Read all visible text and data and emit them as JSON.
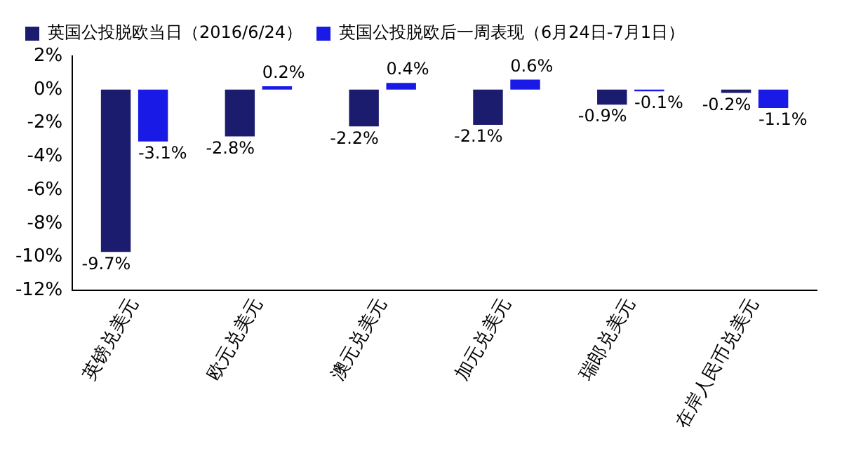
{
  "chart_data": {
    "type": "bar",
    "categories": [
      "英镑兑美元",
      "欧元兑美元",
      "澳元兑美元",
      "加元兑美元",
      "瑞郎兑美元",
      "在岸人民币兑美元"
    ],
    "series": [
      {
        "name": "英国公投脱欧当日（2016/6/24）",
        "color": "#1c1c6e",
        "values": [
          -9.7,
          -2.8,
          -2.2,
          -2.1,
          -0.9,
          -0.2
        ],
        "value_labels": [
          "-9.7%",
          "-2.8%",
          "-2.2%",
          "-2.1%",
          "-0.9%",
          "-0.2%"
        ]
      },
      {
        "name": "英国公投脱欧后一周表现（6月24日-7月1日）",
        "color": "#1a1ae6",
        "values": [
          -3.1,
          0.2,
          0.4,
          0.6,
          -0.1,
          -1.1
        ],
        "value_labels": [
          "-3.1%",
          "0.2%",
          "0.4%",
          "0.6%",
          "-0.1%",
          "-1.1%"
        ]
      }
    ],
    "ylim": [
      -12,
      2
    ],
    "yticks": [
      {
        "value": -12,
        "label": "-12%"
      },
      {
        "value": -10,
        "label": "-10%"
      },
      {
        "value": -8,
        "label": "-8%"
      },
      {
        "value": -6,
        "label": "-6%"
      },
      {
        "value": -4,
        "label": "-4%"
      },
      {
        "value": -2,
        "label": "-2%"
      },
      {
        "value": 0,
        "label": "0%"
      },
      {
        "value": 2,
        "label": "2%"
      }
    ],
    "grid": false,
    "legend": "top left"
  }
}
